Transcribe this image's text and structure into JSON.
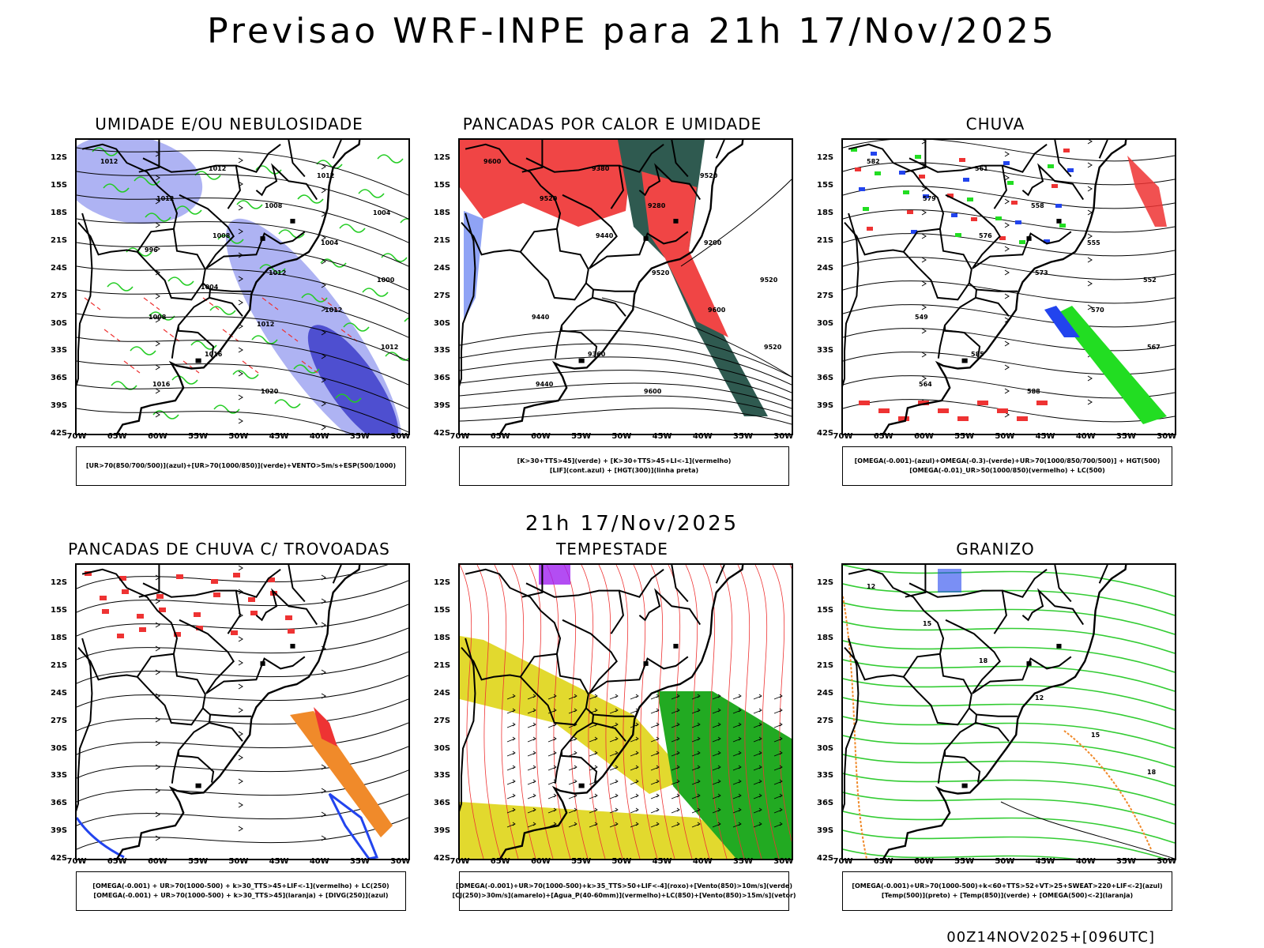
{
  "main_title": "Previsao WRF-INPE  para 21h 17/Nov/2025",
  "middle_title": "21h 17/Nov/2025",
  "footer": "00Z14NOV2025+[096UTC]",
  "lat_labels": [
    "12S",
    "15S",
    "18S",
    "21S",
    "24S",
    "27S",
    "30S",
    "33S",
    "36S",
    "39S",
    "42S"
  ],
  "lon_labels": [
    "70W",
    "65W",
    "60W",
    "55W",
    "50W",
    "45W",
    "40W",
    "35W",
    "30W"
  ],
  "colors": {
    "umidade_azul": "#9aa0f0",
    "umidade_verde": "#22cc22",
    "pancadas_vermelho": "#f04545",
    "pancadas_verde_escuro": "#2f5a50",
    "chuva_azul": "#2244ee",
    "chuva_verde": "#22dd22",
    "trovoada_laranja": "#f08a2a",
    "tempestade_amarelo": "#e2d92e",
    "granizo_verde": "#33cc33"
  },
  "panels": [
    {
      "title": "UMIDADE E/OU NEBULOSIDADE",
      "legend": [
        "[UR>70(850/700/500)](azul)+[UR>70(1000/850)](verde)+VENTO>5m/s+ESP(500/1000)"
      ],
      "contour_labels": [
        "1012",
        "1012",
        "1008",
        "1012",
        "1012",
        "1012",
        "1016",
        "1012",
        "1008",
        "1004",
        "1000",
        "1008",
        "1016",
        "1020",
        "1012",
        "1004",
        "996",
        "1004",
        "1012"
      ]
    },
    {
      "title": "PANCADAS POR CALOR E UMIDADE",
      "legend": [
        "[K>30+TTS>45](verde) + [K>30+TTS>45+LI<-1](vermelho)",
        "[LIF](cont.azul) + [HGT(300)](linha preta)"
      ],
      "contour_labels": [
        "9600",
        "9520",
        "9440",
        "9520",
        "9600",
        "9520",
        "9440",
        "9380",
        "9280",
        "9200",
        "9520",
        "9440",
        "9360",
        "9600",
        "9520"
      ]
    },
    {
      "title": "CHUVA",
      "legend": [
        "[OMEGA(-0.001)-(azul)+OMEGA(-0.3)-(verde)+UR>70(1000/850/700/500)] + HGT(500)",
        "[OMEGA(-0.01)_UR>50(1000/850)(vermelho) + LC(500)"
      ],
      "contour_labels": [
        "582",
        "579",
        "576",
        "573",
        "570",
        "567",
        "564",
        "561",
        "558",
        "555",
        "552",
        "549",
        "585",
        "588"
      ]
    },
    {
      "title": "PANCADAS DE CHUVA C/ TROVOADAS",
      "legend": [
        "[OMEGA(-0.001) + UR>70(1000-500) + k>30_TTS>45+LIF<-1](vermelho) + LC(250)",
        "[OMEGA(-0.001) + UR>70(1000-500) + k>30_TTS>45](laranja) + [DIVG(250)](azul)"
      ],
      "contour_labels": []
    },
    {
      "title": "TEMPESTADE",
      "legend": [
        "[OMEGA(-0.001)+UR>70(1000-500)+k>35_TTS>50+LIF<-4](roxo)+[Vento(850)>10m/s](verde)",
        "[CJ(250)>30m/s](amarelo)+[Agua_P(40-60mm)](vermelho)+LC(850)+[Vento(850)>15m/s](vetor)"
      ],
      "contour_labels": []
    },
    {
      "title": "GRANIZO",
      "legend": [
        "[OMEGA(-0.001)+UR>70(1000-500)+k<60+TTS>52+VT>25+SWEAT>220+LIF<-2](azul)",
        "[Temp(500)](preto) + [Temp(850)](verde) + [OMEGA(500)<-2](laranja)"
      ],
      "contour_labels": [
        "12",
        "15",
        "18",
        "12",
        "15",
        "18"
      ]
    }
  ]
}
